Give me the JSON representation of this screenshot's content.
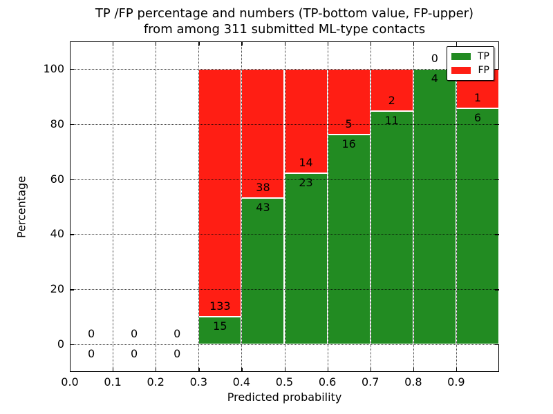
{
  "title": {
    "line1": "TP /FP percentage and numbers (TP-bottom value, FP-upper)",
    "line2": "from among 311 submitted ML-type contacts"
  },
  "axes": {
    "xlabel": "Predicted probability",
    "ylabel": "Percentage",
    "x_tick_labels": [
      "0.0",
      "0.1",
      "0.2",
      "0.3",
      "0.4",
      "0.5",
      "0.6",
      "0.7",
      "0.8",
      "0.9"
    ],
    "y_tick_labels": [
      "0",
      "20",
      "40",
      "60",
      "80",
      "100"
    ],
    "y_tick_values": [
      0,
      20,
      40,
      60,
      80,
      100
    ],
    "xlim": [
      0.0,
      1.0
    ],
    "ylim": [
      -10,
      110
    ],
    "grid_style": "dotted"
  },
  "legend": {
    "position": "upper-right",
    "items": [
      {
        "label": "TP",
        "color": "#228B22"
      },
      {
        "label": "FP",
        "color": "#FF1E14"
      }
    ]
  },
  "colors": {
    "tp_green": "#228B22",
    "fp_red": "#FF1E14",
    "background": "#FFFFFF",
    "text": "#000000"
  },
  "chart_data": {
    "type": "bar",
    "stacked": true,
    "normalized_to_percent": true,
    "title": "TP /FP percentage and numbers (TP-bottom value, FP-upper) from among 311 submitted ML-type contacts",
    "xlabel": "Predicted probability",
    "ylabel": "Percentage",
    "xlim": [
      0.0,
      1.0
    ],
    "ylim": [
      -10,
      110
    ],
    "bar_width": 0.1,
    "bin_starts": [
      0.0,
      0.1,
      0.2,
      0.3,
      0.4,
      0.5,
      0.6,
      0.7,
      0.8,
      0.9
    ],
    "series": [
      {
        "name": "TP",
        "color": "#228B22",
        "counts": [
          0,
          0,
          0,
          15,
          43,
          23,
          16,
          11,
          4,
          6
        ]
      },
      {
        "name": "FP",
        "color": "#FF1E14",
        "counts": [
          0,
          0,
          0,
          133,
          38,
          14,
          5,
          2,
          0,
          1
        ]
      }
    ],
    "total_contacts": 311,
    "legend_position": "upper right",
    "grid": true
  }
}
